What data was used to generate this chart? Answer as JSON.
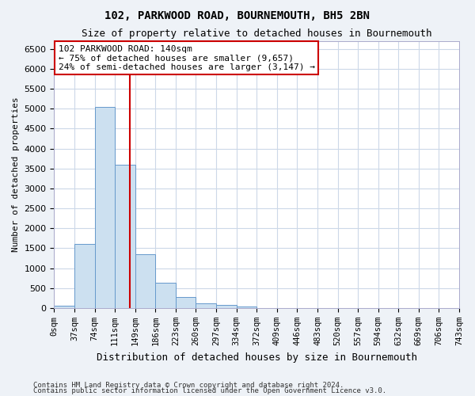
{
  "title": "102, PARKWOOD ROAD, BOURNEMOUTH, BH5 2BN",
  "subtitle": "Size of property relative to detached houses in Bournemouth",
  "xlabel": "Distribution of detached houses by size in Bournemouth",
  "ylabel": "Number of detached properties",
  "footnote1": "Contains HM Land Registry data © Crown copyright and database right 2024.",
  "footnote2": "Contains public sector information licensed under the Open Government Licence v3.0.",
  "bin_labels": [
    "0sqm",
    "37sqm",
    "74sqm",
    "111sqm",
    "149sqm",
    "186sqm",
    "223sqm",
    "260sqm",
    "297sqm",
    "334sqm",
    "372sqm",
    "409sqm",
    "446sqm",
    "483sqm",
    "520sqm",
    "557sqm",
    "594sqm",
    "632sqm",
    "669sqm",
    "706sqm",
    "743sqm"
  ],
  "bar_values": [
    50,
    1600,
    5050,
    3600,
    1350,
    625,
    270,
    120,
    80,
    40,
    0,
    0,
    0,
    0,
    0,
    0,
    0,
    0,
    0,
    0
  ],
  "bar_color": "#cce0f0",
  "bar_edge_color": "#6699cc",
  "vline_x_index": 3.73,
  "vline_color": "#cc0000",
  "annotation_line1": "102 PARKWOOD ROAD: 140sqm",
  "annotation_line2": "← 75% of detached houses are smaller (9,657)",
  "annotation_line3": "24% of semi-detached houses are larger (3,147) →",
  "annotation_box_color": "#ffffff",
  "annotation_box_edge_color": "#cc0000",
  "ylim": [
    0,
    6700
  ],
  "yticks": [
    0,
    500,
    1000,
    1500,
    2000,
    2500,
    3000,
    3500,
    4000,
    4500,
    5000,
    5500,
    6000,
    6500
  ],
  "bg_color": "#eef2f7",
  "plot_bg_color": "#ffffff",
  "grid_color": "#ccd8e8",
  "title_fontsize": 10,
  "subtitle_fontsize": 9,
  "ylabel_fontsize": 8,
  "xlabel_fontsize": 9,
  "tick_fontsize": 8,
  "xtick_fontsize": 7.5
}
